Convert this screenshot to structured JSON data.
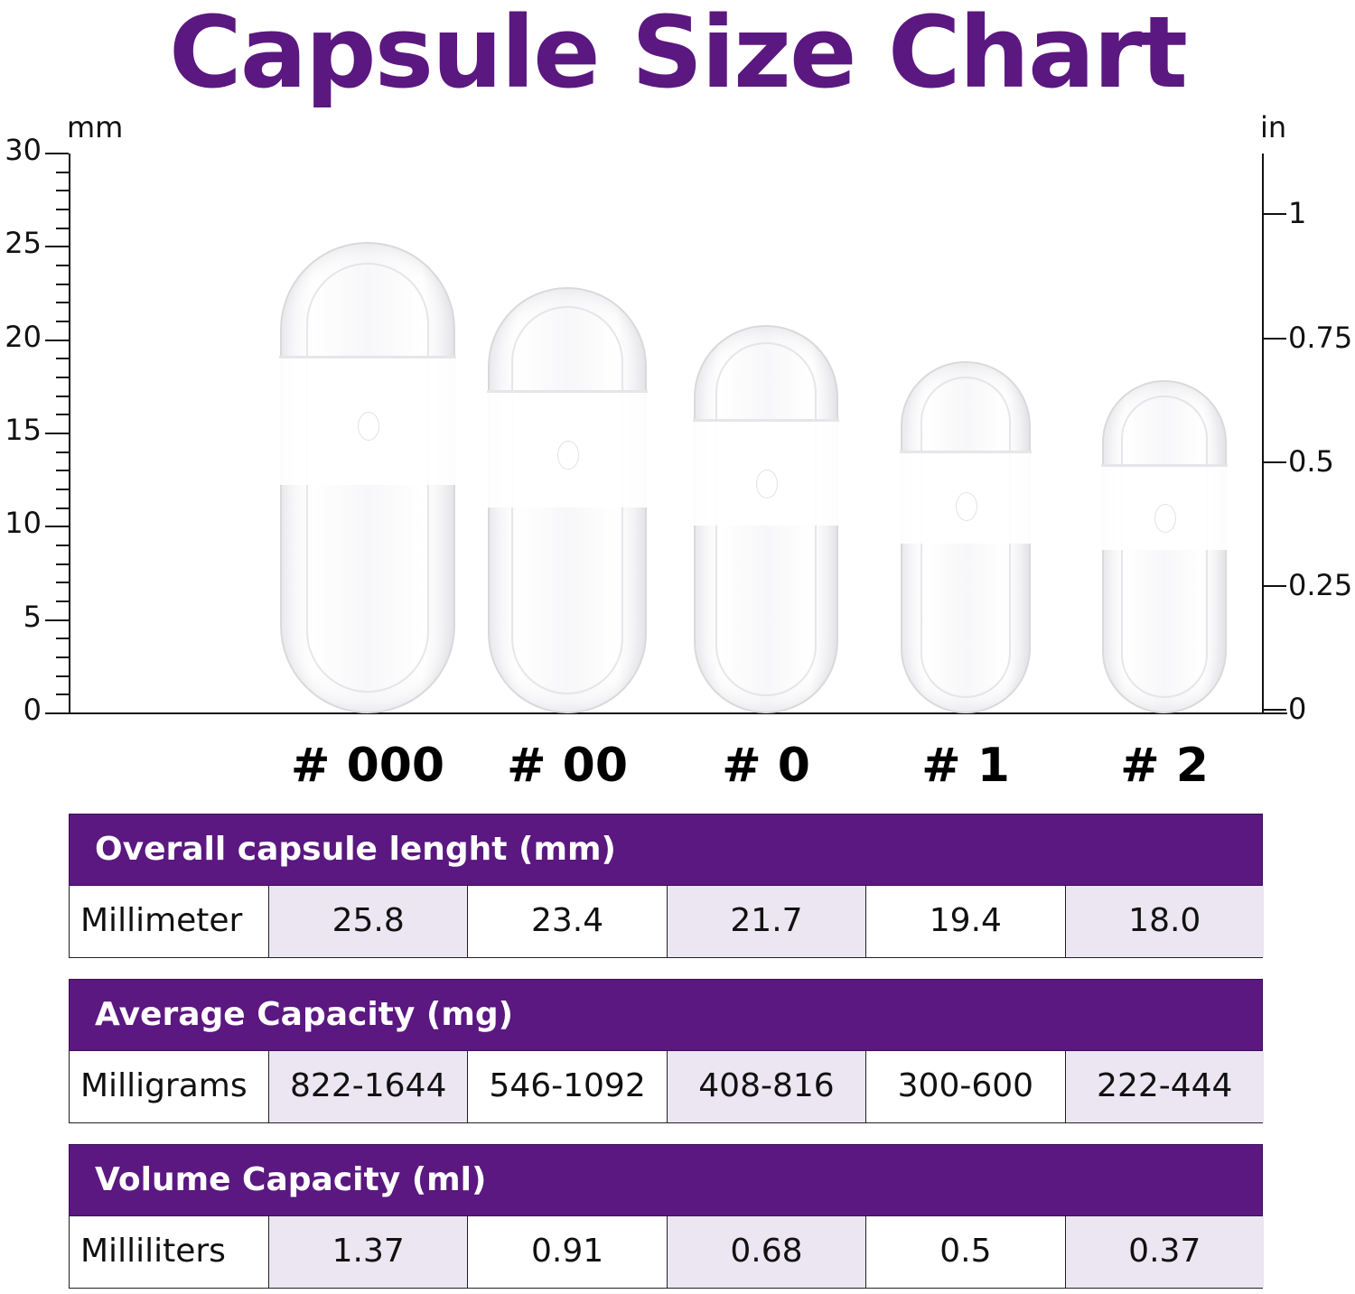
{
  "title": "Capsule Size Chart",
  "colors": {
    "brand_purple": "#5b1880",
    "shade_cell": "#ebe6f2",
    "text": "#111111"
  },
  "axes": {
    "left": {
      "unit": "mm",
      "ticks": [
        "0",
        "5",
        "10",
        "15",
        "20",
        "25",
        "30"
      ]
    },
    "right": {
      "unit": "in",
      "ticks": [
        "0",
        "0.25",
        "0.5",
        "0.75",
        "1"
      ]
    }
  },
  "capsules": [
    {
      "label": "# 000",
      "length_mm": 25.8
    },
    {
      "label": "# 00",
      "length_mm": 23.4
    },
    {
      "label": "# 0",
      "length_mm": 21.7
    },
    {
      "label": "# 1",
      "length_mm": 19.4
    },
    {
      "label": "# 2",
      "length_mm": 18.0
    }
  ],
  "tables": [
    {
      "header": "Overall capsule lenght (mm)",
      "row_label": "Millimeter",
      "values": [
        "25.8",
        "23.4",
        "21.7",
        "19.4",
        "18.0"
      ]
    },
    {
      "header": "Average Capacity (mg)",
      "row_label": "Milligrams",
      "values": [
        "822-1644",
        "546-1092",
        "408-816",
        "300-600",
        "222-444"
      ]
    },
    {
      "header": "Volume Capacity (ml)",
      "row_label": "Milliliters",
      "values": [
        "1.37",
        "0.91",
        "0.68",
        "0.5",
        "0.37"
      ]
    }
  ],
  "chart_data": {
    "type": "bar",
    "title": "Capsule Size Chart",
    "categories": [
      "# 000",
      "# 00",
      "# 0",
      "# 1",
      "# 2"
    ],
    "series": [
      {
        "name": "Overall capsule length (mm)",
        "values": [
          25.8,
          23.4,
          21.7,
          19.4,
          18.0
        ]
      },
      {
        "name": "Average Capacity min (mg)",
        "values": [
          822,
          546,
          408,
          300,
          222
        ]
      },
      {
        "name": "Average Capacity max (mg)",
        "values": [
          1644,
          1092,
          816,
          600,
          444
        ]
      },
      {
        "name": "Volume Capacity (ml)",
        "values": [
          1.37,
          0.91,
          0.68,
          0.5,
          0.37
        ]
      }
    ],
    "xlabel": "",
    "ylabel": "mm",
    "ylabel_right": "in",
    "ylim": [
      0,
      30
    ],
    "ylim_right": [
      0,
      1.18
    ],
    "yticks": [
      0,
      5,
      10,
      15,
      20,
      25,
      30
    ],
    "yticks_right": [
      0,
      0.25,
      0.5,
      0.75,
      1
    ],
    "minor_ticks_mm": 1,
    "grid": false,
    "legend": "none",
    "notes": "Bars are rendered as clear capsule images whose heights correspond to capsule length in mm"
  }
}
